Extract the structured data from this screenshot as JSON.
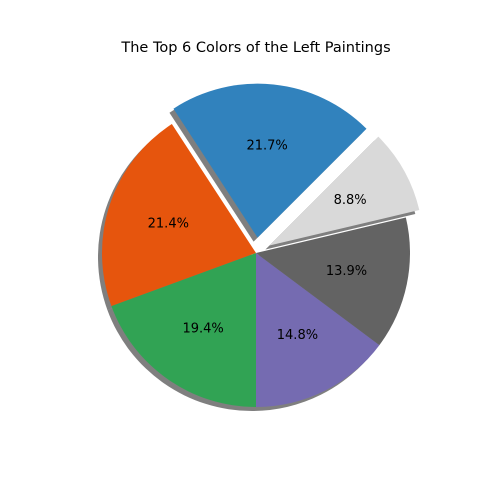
{
  "chart_data": {
    "type": "pie",
    "title": "The Top 6 Colors of the Left Paintings",
    "labels": [
      "",
      "",
      "",
      "",
      "",
      ""
    ],
    "values": [
      21.7,
      21.4,
      19.4,
      14.8,
      13.9,
      8.8
    ],
    "percent_labels": [
      "21.7%",
      "21.4%",
      "19.4%",
      "14.8%",
      "13.9%",
      "8.8%"
    ],
    "colors": [
      "#3182bd",
      "#e6550d",
      "#31a354",
      "#756bb1",
      "#636363",
      "#d9d9d9"
    ],
    "explode": [
      0.1,
      0.0,
      0.0,
      0.0,
      0.0,
      0.1
    ],
    "start_angle_deg": 45,
    "shadow": true,
    "legend": "none"
  }
}
